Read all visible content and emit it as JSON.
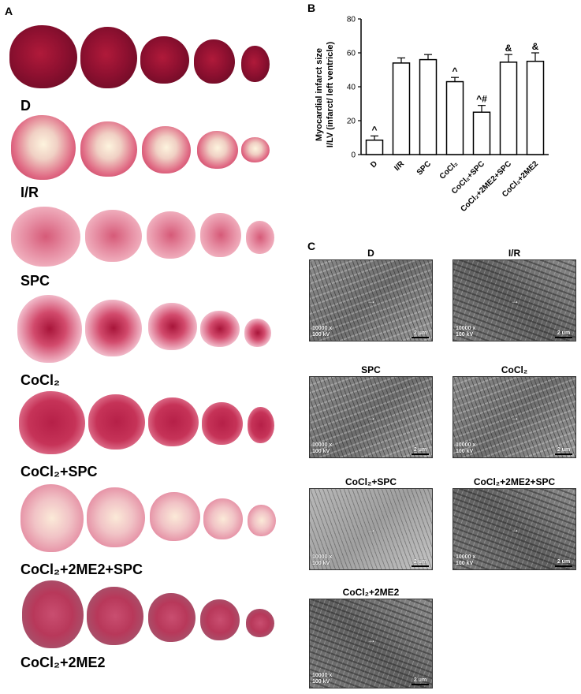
{
  "panels": {
    "a": "A",
    "b": "B",
    "c": "C"
  },
  "groups": [
    {
      "label": "D"
    },
    {
      "label": "I/R"
    },
    {
      "label": "SPC"
    },
    {
      "label": "CoCl₂"
    },
    {
      "label": "CoCl₂+SPC"
    },
    {
      "label": "CoCl₂+2ME2+SPC"
    },
    {
      "label": "CoCl₂+2ME2"
    }
  ],
  "chart_data": {
    "type": "bar",
    "ylabel": "Myocardial infarct size I/LV (infarct/ left ventricle)",
    "ylabel_line1": "Myocardial infarct size",
    "ylabel_line2": "I/LV (infarct/ left ventricle)",
    "ylim": [
      0,
      80
    ],
    "yticks": [
      0,
      20,
      40,
      60,
      80
    ],
    "categories": [
      "D",
      "I/R",
      "SPC",
      "CoCl₂",
      "CoCl₂+SPC",
      "CoCl₂+2ME2+SPC",
      "CoCl₂+2ME2"
    ],
    "values": [
      8.5,
      54,
      56,
      43,
      25,
      54.5,
      55
    ],
    "errors": [
      2.5,
      3,
      3,
      2.5,
      4,
      4.5,
      5
    ],
    "annotations": [
      "^",
      "",
      "",
      "^",
      "^#",
      "&",
      "&"
    ],
    "bar_color": "#ffffff",
    "grid": false
  },
  "em": {
    "magnification": "10000 x",
    "voltage": "100 kV",
    "scale": "2 um",
    "panels": [
      {
        "title": "D"
      },
      {
        "title": "I/R"
      },
      {
        "title": "SPC"
      },
      {
        "title": "CoCl₂"
      },
      {
        "title": "CoCl₂+SPC"
      },
      {
        "title": "CoCl₂+2ME2+SPC"
      },
      {
        "title": "CoCl₂+2ME2"
      }
    ]
  }
}
